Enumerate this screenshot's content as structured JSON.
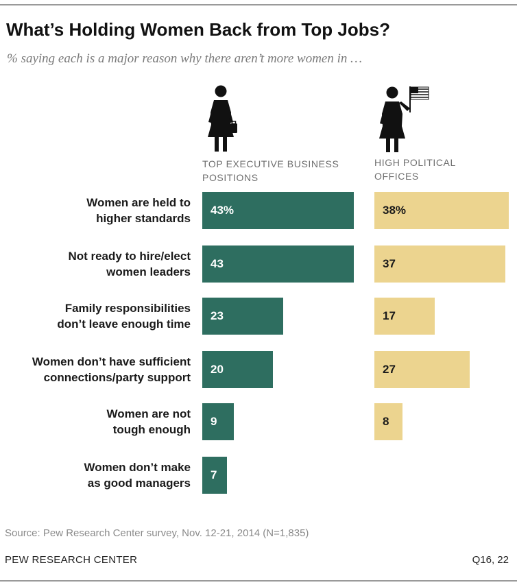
{
  "title": "What’s Holding Women Back from Top Jobs?",
  "subtitle": "% saying each is a major reason why there aren’t more women in …",
  "icons": {
    "business": "businesswoman-with-briefcase-icon",
    "political": "woman-holding-us-flag-icon"
  },
  "colors": {
    "business_bar": "#2e6e60",
    "political_bar": "#ecd48f"
  },
  "chart_data": {
    "type": "bar",
    "orientation": "horizontal",
    "categories": [
      [
        "Women are held to",
        "higher standards"
      ],
      [
        "Not ready to hire/elect",
        "women leaders"
      ],
      [
        "Family responsibilities",
        "don’t leave enough time"
      ],
      [
        "Women don’t have sufficient",
        "connections/party support"
      ],
      [
        "Women are not",
        "tough enough"
      ],
      [
        "Women don’t make",
        "as good managers"
      ]
    ],
    "series": [
      {
        "name": "TOP EXECUTIVE BUSINESS POSITIONS",
        "header_lines": [
          "TOP EXECUTIVE BUSINESS",
          "POSITIONS"
        ],
        "values": [
          43,
          43,
          23,
          20,
          9,
          7
        ],
        "labels": [
          "43%",
          "43",
          "23",
          "20",
          "9",
          "7"
        ]
      },
      {
        "name": "HIGH POLITICAL OFFICES",
        "header_lines": [
          "HIGH POLITICAL",
          "OFFICES"
        ],
        "values": [
          38,
          37,
          17,
          27,
          8,
          null
        ],
        "labels": [
          "38%",
          "37",
          "17",
          "27",
          "8",
          null
        ]
      }
    ],
    "unit": "%",
    "grid": false,
    "legend": "column headers above each bar group"
  },
  "footer": {
    "source": "Source: Pew Research Center survey, Nov. 12-21, 2014 (N=1,835)",
    "organization": "PEW RESEARCH CENTER",
    "question_ref": "Q16, 22"
  }
}
